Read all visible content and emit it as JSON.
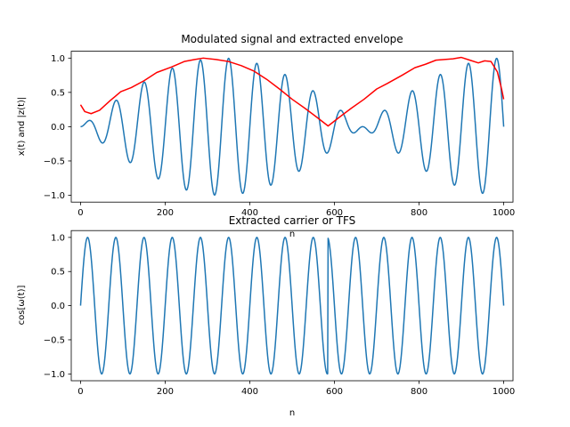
{
  "chart_data": [
    {
      "type": "line",
      "title": "Modulated signal and extracted envelope",
      "xlabel": "n",
      "ylabel": "x(t) and |z(t)|",
      "xlim": [
        -22,
        1022
      ],
      "ylim": [
        -1.1,
        1.1
      ],
      "xticks": [
        0,
        200,
        400,
        600,
        800,
        1000
      ],
      "yticks": [
        -1.0,
        -0.5,
        0.0,
        0.5,
        1.0
      ],
      "xtick_labels": [
        "0",
        "200",
        "400",
        "600",
        "800",
        "1000"
      ],
      "ytick_labels": [
        "−1.0",
        "−0.5",
        "0.0",
        "0.5",
        "1.0"
      ],
      "grid": false,
      "series": [
        {
          "color": "#1f77b4",
          "n_points": 1001,
          "modulation": {
            "amplitude": 1.0,
            "cycles_over_range": 1.5
          },
          "carrier": {
            "cycles_over_range": 15,
            "phase": 0.0
          }
        },
        {
          "color": "#ff0000",
          "points": [
            [
              0,
              0.32
            ],
            [
              10,
              0.22
            ],
            [
              25,
              0.19
            ],
            [
              45,
              0.24
            ],
            [
              70,
              0.38
            ],
            [
              95,
              0.51
            ],
            [
              120,
              0.57
            ],
            [
              150,
              0.67
            ],
            [
              180,
              0.79
            ],
            [
              215,
              0.87
            ],
            [
              245,
              0.95
            ],
            [
              270,
              0.98
            ],
            [
              290,
              1.0
            ],
            [
              320,
              0.98
            ],
            [
              350,
              0.95
            ],
            [
              380,
              0.89
            ],
            [
              410,
              0.81
            ],
            [
              440,
              0.69
            ],
            [
              470,
              0.55
            ],
            [
              500,
              0.4
            ],
            [
              530,
              0.27
            ],
            [
              560,
              0.13
            ],
            [
              585,
              0.01
            ],
            [
              610,
              0.13
            ],
            [
              640,
              0.27
            ],
            [
              670,
              0.4
            ],
            [
              700,
              0.55
            ],
            [
              725,
              0.63
            ],
            [
              760,
              0.75
            ],
            [
              790,
              0.86
            ],
            [
              815,
              0.91
            ],
            [
              840,
              0.97
            ],
            [
              860,
              0.98
            ],
            [
              880,
              0.99
            ],
            [
              900,
              1.01
            ],
            [
              920,
              0.97
            ],
            [
              940,
              0.93
            ],
            [
              955,
              0.96
            ],
            [
              970,
              0.95
            ],
            [
              985,
              0.8
            ],
            [
              995,
              0.55
            ],
            [
              1000,
              0.4
            ]
          ]
        }
      ]
    },
    {
      "type": "line",
      "title": "Extracted carrier or TFS",
      "xlabel": "n",
      "ylabel": "cos[ω(t)]",
      "xlim": [
        -22,
        1022
      ],
      "ylim": [
        -1.1,
        1.1
      ],
      "xticks": [
        0,
        200,
        400,
        600,
        800,
        1000
      ],
      "yticks": [
        -1.0,
        -0.5,
        0.0,
        0.5,
        1.0
      ],
      "xtick_labels": [
        "0",
        "200",
        "400",
        "600",
        "800",
        "1000"
      ],
      "ytick_labels": [
        "−1.0",
        "−0.5",
        "0.0",
        "0.5",
        "1.0"
      ],
      "grid": false,
      "series": [
        {
          "color": "#1f77b4",
          "n_points": 1001,
          "carrier": {
            "cycles_over_range": 15,
            "phase": 0.0,
            "flip_at_n": 585
          }
        }
      ]
    }
  ]
}
